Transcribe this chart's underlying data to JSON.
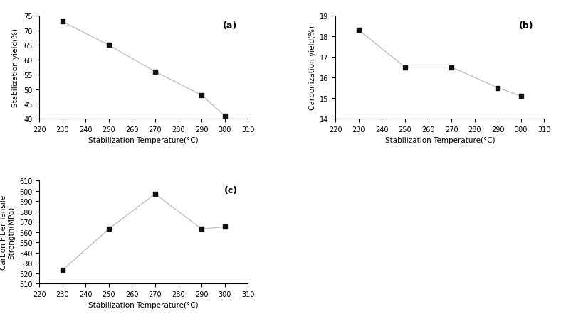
{
  "a": {
    "x": [
      230,
      250,
      270,
      290,
      300
    ],
    "y": [
      73,
      65,
      56,
      48,
      41
    ],
    "xlabel": "Stabilization Temperature(°C)",
    "ylabel": "Stabilization yield(%)",
    "xlim": [
      220,
      310
    ],
    "ylim": [
      40,
      75
    ],
    "xticks": [
      220,
      230,
      240,
      250,
      260,
      270,
      280,
      290,
      300,
      310
    ],
    "yticks": [
      40,
      45,
      50,
      55,
      60,
      65,
      70,
      75
    ],
    "label": "(a)"
  },
  "b": {
    "x": [
      230,
      250,
      270,
      290,
      300
    ],
    "y": [
      18.3,
      16.5,
      16.5,
      15.5,
      15.1
    ],
    "xlabel": "Stabilization Temperature(°C)",
    "ylabel": "Carbonization yield(%)",
    "xlim": [
      220,
      310
    ],
    "ylim": [
      14,
      19
    ],
    "xticks": [
      220,
      230,
      240,
      250,
      260,
      270,
      280,
      290,
      300,
      310
    ],
    "yticks": [
      14,
      15,
      16,
      17,
      18,
      19
    ],
    "label": "(b)"
  },
  "c": {
    "x": [
      230,
      250,
      270,
      290,
      300
    ],
    "y": [
      523,
      563,
      597,
      563,
      565
    ],
    "xlabel": "Stabilization Temperature(°C)",
    "ylabel": "Carbon Fiber Tensile\nStrength(MPa)",
    "xlim": [
      220,
      310
    ],
    "ylim": [
      510,
      610
    ],
    "xticks": [
      220,
      230,
      240,
      250,
      260,
      270,
      280,
      290,
      300,
      310
    ],
    "yticks": [
      510,
      520,
      530,
      540,
      550,
      560,
      570,
      580,
      590,
      600,
      610
    ],
    "label": "(c)"
  },
  "line_color": "#bbbbbb",
  "marker_color": "#111111",
  "marker": "s",
  "markersize": 4,
  "linewidth": 0.9,
  "fontsize_label": 7.5,
  "fontsize_tick": 7,
  "fontsize_sublabel": 9
}
